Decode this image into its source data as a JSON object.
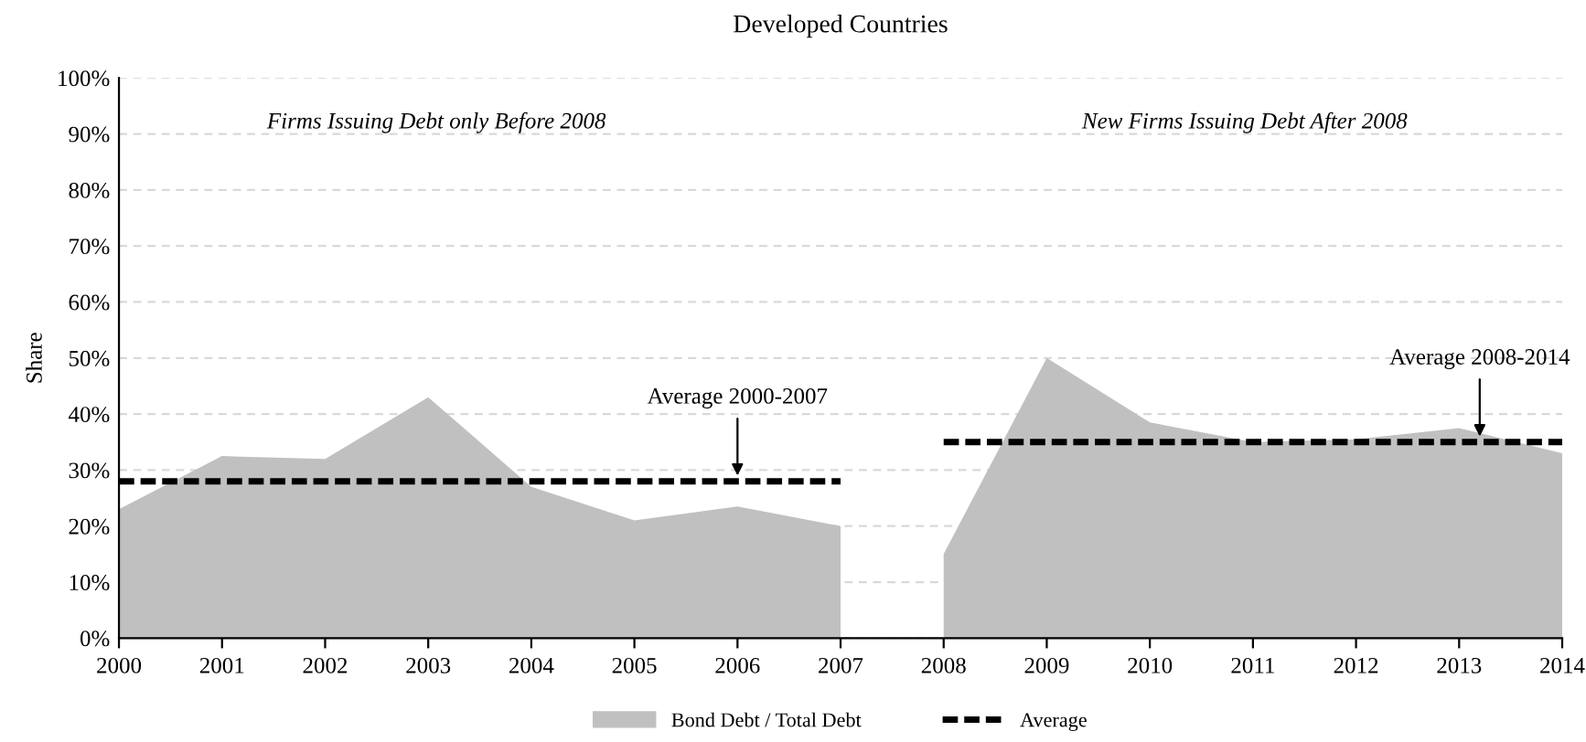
{
  "chart_data": {
    "type": "area",
    "title": "Developed Countries",
    "ylabel": "Share",
    "series": [
      {
        "name": "Bond Debt / Total Debt",
        "color": "#c0c0c0",
        "x": [
          2000,
          2001,
          2002,
          2003,
          2004,
          2005,
          2006,
          2007
        ],
        "values": [
          23,
          32.5,
          32,
          43,
          27,
          21,
          23.5,
          20
        ]
      },
      {
        "color": "#c0c0c0",
        "x": [
          2008,
          2009,
          2010,
          2011,
          2012,
          2013,
          2014
        ],
        "values": [
          15,
          50,
          38.5,
          35,
          35.5,
          37.5,
          33
        ]
      },
      {
        "type": "line",
        "name": "Average",
        "color": "#000000",
        "line_style": "dashed",
        "x": [
          2000,
          2007
        ],
        "values": [
          28,
          28
        ]
      },
      {
        "type": "line",
        "color": "#000000",
        "line_style": "dashed",
        "x": [
          2008,
          2014
        ],
        "values": [
          35,
          35
        ]
      }
    ],
    "annotations": [
      "Firms Issuing Debt only Before 2008",
      "New Firms Issuing Debt After 2008",
      {
        "text": "Average 2000-2007",
        "x": 2006,
        "y": 28
      },
      {
        "text": "Average 2008-2014",
        "x": 2013.2,
        "y": 35
      }
    ],
    "xlim": [
      2000,
      2014
    ],
    "xticks": [
      2000,
      2001,
      2002,
      2003,
      2004,
      2005,
      2006,
      2007,
      2008,
      2009,
      2010,
      2011,
      2012,
      2013,
      2014
    ],
    "ylim": [
      0,
      100
    ],
    "yticks": [
      {
        "value": 0,
        "label": "0%"
      },
      {
        "value": 10,
        "label": "10%"
      },
      {
        "value": 20,
        "label": "20%"
      },
      {
        "value": 30,
        "label": "30%"
      },
      {
        "value": 40,
        "label": "40%"
      },
      {
        "value": 50,
        "label": "50%"
      },
      {
        "value": 60,
        "label": "60%"
      },
      {
        "value": 70,
        "label": "70%"
      },
      {
        "value": 80,
        "label": "80%"
      },
      {
        "value": 90,
        "label": "90%"
      },
      {
        "value": 100,
        "label": "100%"
      }
    ],
    "grid": "y",
    "legend": "bottom"
  }
}
